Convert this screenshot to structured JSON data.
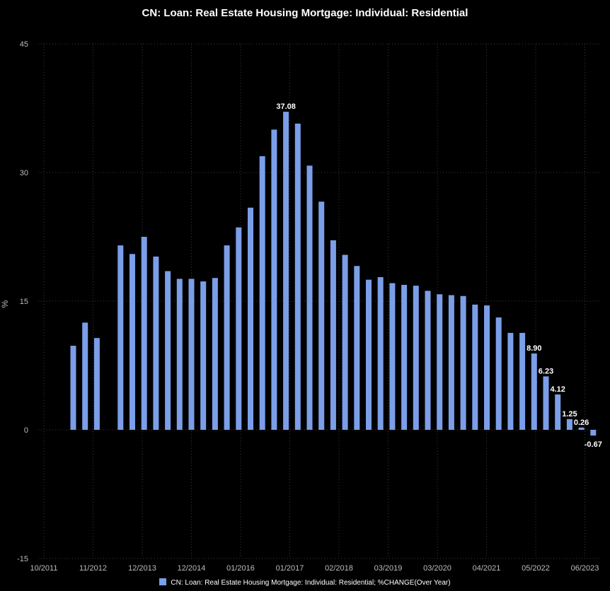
{
  "chart_data": {
    "type": "bar",
    "title": "CN: Loan: Real Estate Housing Mortgage: Individual: Residential",
    "ylabel": "%",
    "xlabel": "",
    "ylim": [
      -15,
      45
    ],
    "yticks": [
      -15,
      0,
      15,
      30,
      45
    ],
    "xticks": [
      "10/2011",
      "11/2012",
      "12/2013",
      "12/2014",
      "01/2016",
      "01/2017",
      "02/2018",
      "03/2019",
      "03/2020",
      "04/2021",
      "05/2022",
      "06/2023"
    ],
    "grid": true,
    "legend_position": "bottom",
    "bar_color": "#7b9ee8",
    "series": [
      {
        "name": "CN: Loan: Real Estate Housing Mortgage: Individual: Residential; %CHANGE(Over Year)",
        "values": [
          9.8,
          12.5,
          10.7,
          null,
          21.5,
          20.5,
          22.5,
          20.2,
          18.5,
          17.6,
          17.6,
          17.3,
          17.7,
          21.5,
          23.6,
          25.9,
          31.9,
          35.0,
          37.08,
          35.7,
          30.8,
          26.6,
          22.1,
          20.4,
          19.1,
          17.5,
          17.8,
          17.1,
          16.9,
          16.8,
          16.2,
          15.8,
          15.7,
          15.6,
          14.6,
          14.5,
          13.1,
          11.3,
          11.3,
          8.9,
          6.23,
          4.12,
          1.25,
          0.26,
          -0.67
        ],
        "labels": [
          {
            "index": 18,
            "text": "37.08"
          },
          {
            "index": 39,
            "text": "8.90"
          },
          {
            "index": 40,
            "text": "6.23"
          },
          {
            "index": 41,
            "text": "4.12"
          },
          {
            "index": 42,
            "text": "1.25"
          },
          {
            "index": 43,
            "text": "0.26"
          },
          {
            "index": 44,
            "text": "-0.67"
          }
        ]
      }
    ]
  }
}
